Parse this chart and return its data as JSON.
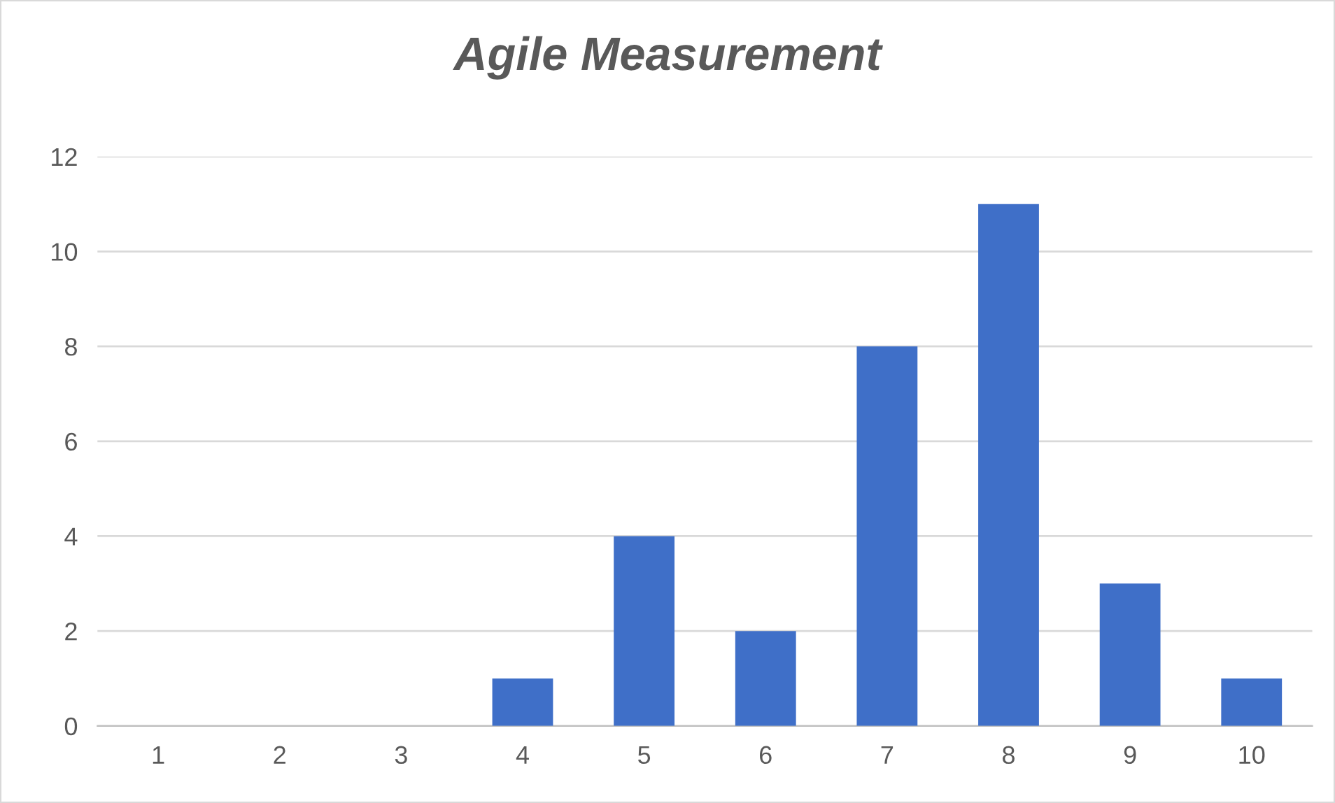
{
  "chart_data": {
    "type": "bar",
    "title": "Agile Measurement",
    "categories": [
      "1",
      "2",
      "3",
      "4",
      "5",
      "6",
      "7",
      "8",
      "9",
      "10"
    ],
    "values": [
      0,
      0,
      0,
      1,
      4,
      2,
      8,
      11,
      3,
      1
    ],
    "color": "#3f6fc8",
    "ylim": [
      0,
      12
    ],
    "yticks": [
      0,
      2,
      4,
      6,
      8,
      10,
      12
    ],
    "grid": "y"
  }
}
